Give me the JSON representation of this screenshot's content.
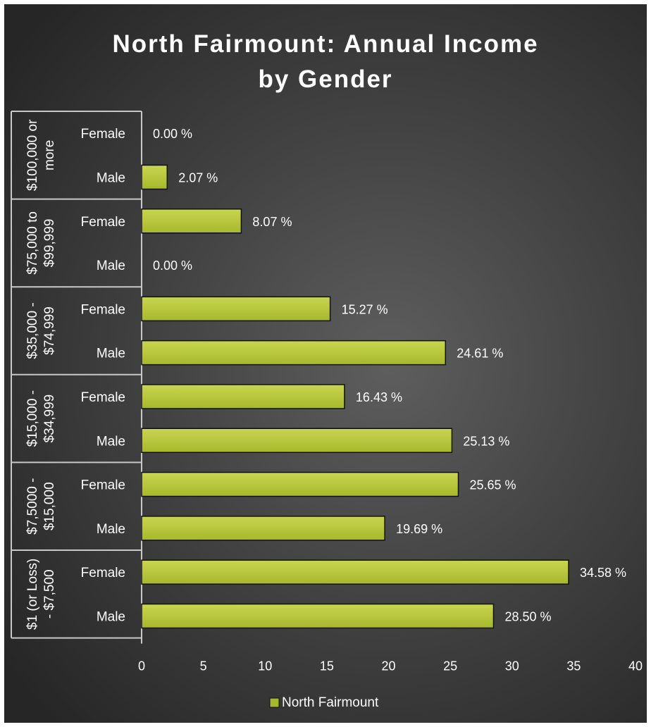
{
  "chart_data": {
    "type": "bar",
    "orientation": "horizontal",
    "title_lines": [
      "North Fairmount: Annual Income",
      "by Gender"
    ],
    "groups": [
      {
        "label_lines": [
          "$100,000 or",
          "more"
        ],
        "items": [
          {
            "category": "Female",
            "value": 0.0,
            "label": "0.00 %"
          },
          {
            "category": "Male",
            "value": 2.07,
            "label": "2.07 %"
          }
        ]
      },
      {
        "label_lines": [
          "$75,000 to",
          "$99,999"
        ],
        "items": [
          {
            "category": "Female",
            "value": 8.07,
            "label": "8.07 %"
          },
          {
            "category": "Male",
            "value": 0.0,
            "label": "0.00 %"
          }
        ]
      },
      {
        "label_lines": [
          "$35,000 -",
          "$74,999"
        ],
        "items": [
          {
            "category": "Female",
            "value": 15.27,
            "label": "15.27 %"
          },
          {
            "category": "Male",
            "value": 24.61,
            "label": "24.61 %"
          }
        ]
      },
      {
        "label_lines": [
          "$15,000 -",
          "$34,999"
        ],
        "items": [
          {
            "category": "Female",
            "value": 16.43,
            "label": "16.43 %"
          },
          {
            "category": "Male",
            "value": 25.13,
            "label": "25.13 %"
          }
        ]
      },
      {
        "label_lines": [
          "$7,5000 -",
          "$15,000"
        ],
        "items": [
          {
            "category": "Female",
            "value": 25.65,
            "label": "25.65 %"
          },
          {
            "category": "Male",
            "value": 19.69,
            "label": "19.69 %"
          }
        ]
      },
      {
        "label_lines": [
          "$1 (or Loss)",
          "- $7,500"
        ],
        "items": [
          {
            "category": "Female",
            "value": 34.58,
            "label": "34.58 %"
          },
          {
            "category": "Male",
            "value": 28.5,
            "label": "28.50 %"
          }
        ]
      }
    ],
    "x_ticks": [
      "0",
      "5",
      "10",
      "15",
      "20",
      "25",
      "30",
      "35",
      "40"
    ],
    "xlim": [
      0,
      40
    ],
    "legend": {
      "position": "bottom",
      "entries": [
        "North Fairmount"
      ]
    },
    "colors": {
      "bar": "#a7b82c",
      "bar_highlight": "#c8d650",
      "bar_edge": "#111111",
      "grid_lines": "#c8c8c8"
    },
    "grid": false
  }
}
